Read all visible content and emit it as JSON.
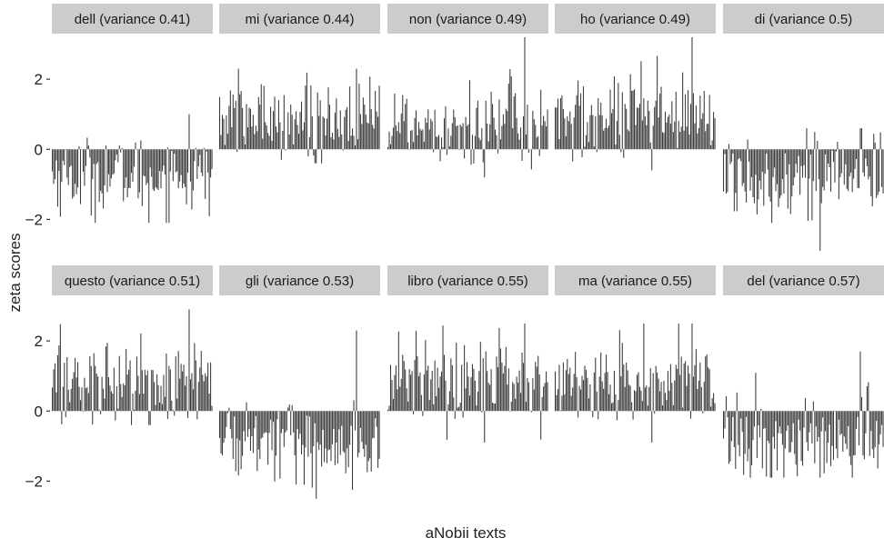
{
  "chart_data": {
    "type": "bar",
    "xlabel": "aNobii texts",
    "ylabel": "zeta scores",
    "ylim": [
      -3.0,
      3.3
    ],
    "yticks": [
      -2,
      0,
      2
    ],
    "ytick_labels": [
      "−2",
      "0",
      "2"
    ],
    "grid": false,
    "bar_color": "#3a3a3a",
    "strip_color": "#cccccc",
    "facets": [
      {
        "title": "dell (variance 0.41)",
        "bars": 120,
        "mean": -0.75,
        "sd": 0.55,
        "min": -2.1,
        "max": 1.0
      },
      {
        "title": "mi (variance 0.44)",
        "bars": 120,
        "mean": 0.9,
        "sd": 0.6,
        "min": -0.4,
        "max": 2.3
      },
      {
        "title": "non (variance 0.49)",
        "bars": 120,
        "mean": 0.75,
        "sd": 0.6,
        "min": -0.8,
        "max": 3.2
      },
      {
        "title": "ho (variance 0.49)",
        "bars": 120,
        "mean": 0.85,
        "sd": 0.65,
        "min": -0.6,
        "max": 3.2
      },
      {
        "title": "di (variance 0.5)",
        "bars": 120,
        "mean": -0.75,
        "sd": 0.6,
        "min": -2.9,
        "max": 0.6
      },
      {
        "title": "questo (variance 0.51)",
        "bars": 120,
        "mean": 0.85,
        "sd": 0.65,
        "min": -0.4,
        "max": 2.9
      },
      {
        "title": "gli (variance 0.53)",
        "bars": 120,
        "mean": -0.85,
        "sd": 0.6,
        "min": -2.5,
        "max": 2.3
      },
      {
        "title": "libro (variance 0.55)",
        "bars": 120,
        "mean": 0.95,
        "sd": 0.65,
        "min": -0.9,
        "max": 2.5
      },
      {
        "title": "ma (variance 0.55)",
        "bars": 120,
        "mean": 0.85,
        "sd": 0.6,
        "min": -0.9,
        "max": 2.5
      },
      {
        "title": "del (variance 0.57)",
        "bars": 120,
        "mean": -0.9,
        "sd": 0.6,
        "min": -1.9,
        "max": 1.7
      }
    ]
  }
}
